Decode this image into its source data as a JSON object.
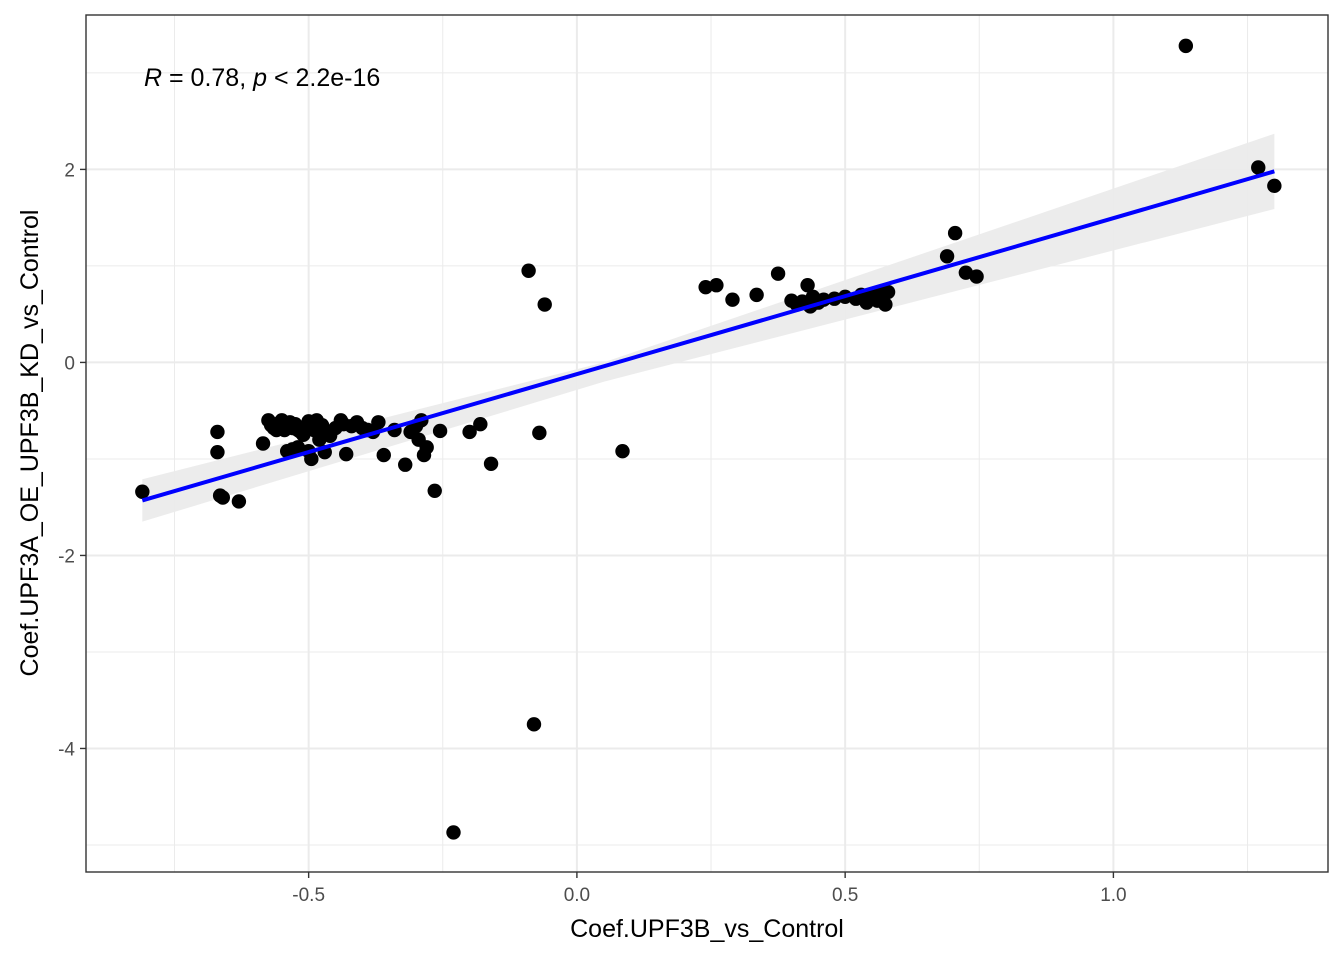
{
  "chart_data": {
    "type": "scatter",
    "xlabel": "Coef.UPF3B_vs_Control",
    "ylabel": "Coef.UPF3A_OE_UPF3B_KD_vs_Control",
    "xlim": [
      -0.915,
      1.4
    ],
    "ylim": [
      -5.28,
      3.6
    ],
    "x_ticks": [
      -0.5,
      0.0,
      0.5,
      1.0
    ],
    "x_tick_labels": [
      "-0.5",
      "0.0",
      "0.5",
      "1.0"
    ],
    "y_ticks": [
      -4,
      -2,
      0,
      2
    ],
    "y_tick_labels": [
      "-4",
      "-2",
      "0",
      "2"
    ],
    "x_minor_ticks": [
      -0.75,
      -0.25,
      0.25,
      0.75,
      1.25
    ],
    "y_minor_ticks": [
      -5,
      -3,
      -1,
      1,
      3
    ],
    "grid": true,
    "annotation": {
      "r_symbol": "R",
      "r_text": " = 0.78, ",
      "p_symbol": "p",
      "p_text": " < 2.2e-16"
    },
    "regression": {
      "x": [
        -0.81,
        1.3
      ],
      "y": [
        -1.43,
        1.98
      ],
      "ci_low_start": -1.65,
      "ci_high_start": -1.21,
      "ci_low_end": 1.59,
      "ci_high_end": 2.37,
      "ci_low_mid": -0.2,
      "ci_high_mid": 0.0,
      "x_mid": 0.05,
      "line_color": "#0000ff",
      "ci_color": "#ebebeb"
    },
    "point_color": "#000000",
    "points": [
      [
        -0.81,
        -1.34
      ],
      [
        -0.67,
        -0.72
      ],
      [
        -0.67,
        -0.93
      ],
      [
        -0.665,
        -1.38
      ],
      [
        -0.66,
        -1.4
      ],
      [
        -0.63,
        -1.44
      ],
      [
        -0.585,
        -0.84
      ],
      [
        -0.575,
        -0.6
      ],
      [
        -0.57,
        -0.65
      ],
      [
        -0.565,
        -0.68
      ],
      [
        -0.56,
        -0.7
      ],
      [
        -0.555,
        -0.63
      ],
      [
        -0.55,
        -0.6
      ],
      [
        -0.545,
        -0.7
      ],
      [
        -0.54,
        -0.66
      ],
      [
        -0.535,
        -0.62
      ],
      [
        -0.53,
        -0.68
      ],
      [
        -0.525,
        -0.64
      ],
      [
        -0.52,
        -0.7
      ],
      [
        -0.515,
        -0.72
      ],
      [
        -0.51,
        -0.75
      ],
      [
        -0.505,
        -0.66
      ],
      [
        -0.5,
        -0.61
      ],
      [
        -0.495,
        -0.63
      ],
      [
        -0.49,
        -0.7
      ],
      [
        -0.485,
        -0.6
      ],
      [
        -0.48,
        -0.68
      ],
      [
        -0.475,
        -0.65
      ],
      [
        -0.47,
        -0.72
      ],
      [
        -0.46,
        -0.74
      ],
      [
        -0.45,
        -0.68
      ],
      [
        -0.44,
        -0.6
      ],
      [
        -0.435,
        -0.64
      ],
      [
        -0.43,
        -0.95
      ],
      [
        -0.42,
        -0.66
      ],
      [
        -0.41,
        -0.62
      ],
      [
        -0.4,
        -0.68
      ],
      [
        -0.39,
        -0.7
      ],
      [
        -0.38,
        -0.72
      ],
      [
        -0.37,
        -0.62
      ],
      [
        -0.36,
        -0.96
      ],
      [
        -0.34,
        -0.7
      ],
      [
        -0.32,
        -1.06
      ],
      [
        -0.31,
        -0.72
      ],
      [
        -0.3,
        -0.66
      ],
      [
        -0.295,
        -0.8
      ],
      [
        -0.29,
        -0.6
      ],
      [
        -0.285,
        -0.96
      ],
      [
        -0.28,
        -0.88
      ],
      [
        -0.265,
        -1.33
      ],
      [
        -0.255,
        -0.71
      ],
      [
        -0.23,
        -4.87
      ],
      [
        -0.2,
        -0.72
      ],
      [
        -0.18,
        -0.64
      ],
      [
        -0.16,
        -1.05
      ],
      [
        -0.09,
        0.95
      ],
      [
        -0.08,
        -3.75
      ],
      [
        -0.07,
        -0.73
      ],
      [
        -0.06,
        0.6
      ],
      [
        0.085,
        -0.92
      ],
      [
        -0.54,
        -0.92
      ],
      [
        -0.53,
        -0.9
      ],
      [
        -0.52,
        -0.88
      ],
      [
        -0.5,
        -0.92
      ],
      [
        -0.495,
        -1.0
      ],
      [
        -0.48,
        -0.8
      ],
      [
        -0.47,
        -0.93
      ],
      [
        -0.46,
        -0.76
      ],
      [
        0.24,
        0.78
      ],
      [
        0.26,
        0.8
      ],
      [
        0.29,
        0.65
      ],
      [
        0.335,
        0.7
      ],
      [
        0.375,
        0.92
      ],
      [
        0.4,
        0.64
      ],
      [
        0.41,
        0.6
      ],
      [
        0.42,
        0.63
      ],
      [
        0.43,
        0.8
      ],
      [
        0.435,
        0.58
      ],
      [
        0.44,
        0.68
      ],
      [
        0.45,
        0.62
      ],
      [
        0.46,
        0.65
      ],
      [
        0.48,
        0.66
      ],
      [
        0.5,
        0.68
      ],
      [
        0.52,
        0.66
      ],
      [
        0.53,
        0.7
      ],
      [
        0.54,
        0.62
      ],
      [
        0.55,
        0.68
      ],
      [
        0.56,
        0.64
      ],
      [
        0.565,
        0.72
      ],
      [
        0.57,
        0.66
      ],
      [
        0.575,
        0.6
      ],
      [
        0.58,
        0.73
      ],
      [
        0.69,
        1.1
      ],
      [
        0.705,
        1.34
      ],
      [
        0.725,
        0.93
      ],
      [
        0.745,
        0.89
      ],
      [
        1.135,
        3.28
      ],
      [
        1.27,
        2.02
      ],
      [
        1.3,
        1.83
      ]
    ]
  }
}
